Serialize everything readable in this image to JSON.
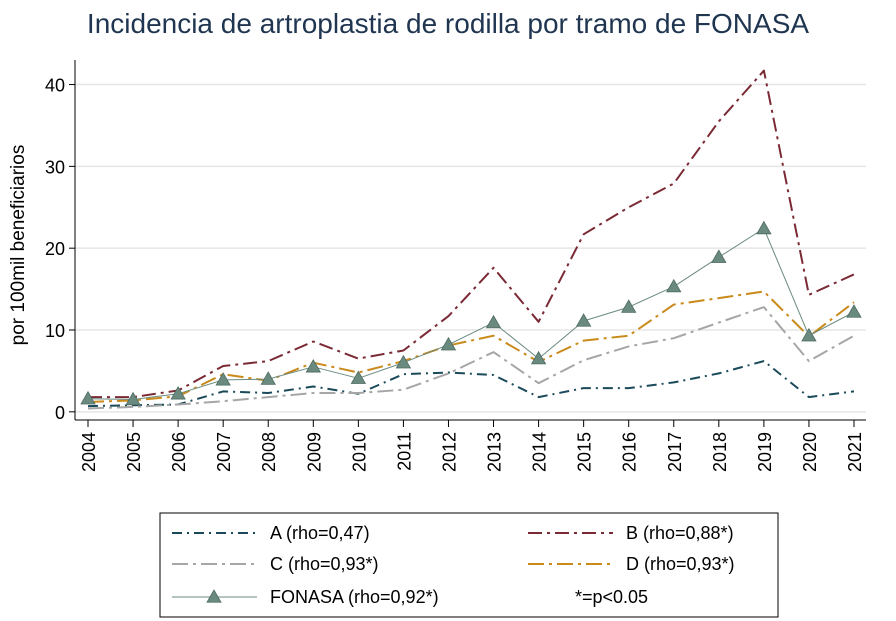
{
  "chart_data": {
    "type": "line",
    "title": "Incidencia de artroplastia de rodilla por tramo de FONASA",
    "ylabel": "por 100mil beneficiarios",
    "xlabel": "",
    "categories": [
      "2004",
      "2005",
      "2006",
      "2007",
      "2008",
      "2009",
      "2010",
      "2011",
      "2012",
      "2013",
      "2014",
      "2015",
      "2016",
      "2017",
      "2018",
      "2019",
      "2020",
      "2021"
    ],
    "yticks": [
      0,
      10,
      20,
      30,
      40
    ],
    "ylim": [
      -1,
      43
    ],
    "grid": true,
    "legend_position": "bottom",
    "series": [
      {
        "name": "A (rho=0,47)",
        "color": "#1a4a5a",
        "dash": "dash-dot",
        "values": [
          0.7,
          0.8,
          0.9,
          2.5,
          2.3,
          3.1,
          2.2,
          4.6,
          4.8,
          4.5,
          1.8,
          2.9,
          2.9,
          3.6,
          4.7,
          6.2,
          1.8,
          2.5
        ]
      },
      {
        "name": "B (rho=0,88*)",
        "color": "#7a2a34",
        "dash": "dash-dot-long",
        "values": [
          1.8,
          1.8,
          2.6,
          5.6,
          6.2,
          8.6,
          6.5,
          7.5,
          11.7,
          17.6,
          11.0,
          21.7,
          25.0,
          27.9,
          35.5,
          41.7,
          14.3,
          16.8
        ]
      },
      {
        "name": "C (rho=0,93*)",
        "color": "#a6a6a6",
        "dash": "long-dash-dot",
        "values": [
          0.4,
          0.6,
          0.9,
          1.3,
          1.8,
          2.3,
          2.3,
          2.7,
          4.7,
          7.3,
          3.5,
          6.3,
          8.0,
          9.0,
          10.9,
          12.8,
          6.2,
          9.3
        ]
      },
      {
        "name": "D (rho=0,93*)",
        "color": "#c98a1a",
        "dash": "long-dash-dot",
        "values": [
          1.2,
          1.4,
          1.9,
          4.6,
          3.8,
          6.0,
          4.8,
          6.2,
          8.1,
          9.3,
          6.1,
          8.7,
          9.3,
          13.1,
          13.9,
          14.7,
          9.2,
          13.4
        ]
      },
      {
        "name": "FONASA (rho=0,92*)",
        "color": "#6a8a80",
        "dash": "solid",
        "marker": "triangle",
        "values": [
          1.6,
          1.5,
          2.2,
          3.9,
          4.0,
          5.5,
          4.1,
          6.0,
          8.2,
          10.9,
          6.5,
          11.1,
          12.8,
          15.3,
          18.9,
          22.4,
          9.3,
          12.2
        ]
      }
    ],
    "legend_note": "*=p<0.05"
  }
}
